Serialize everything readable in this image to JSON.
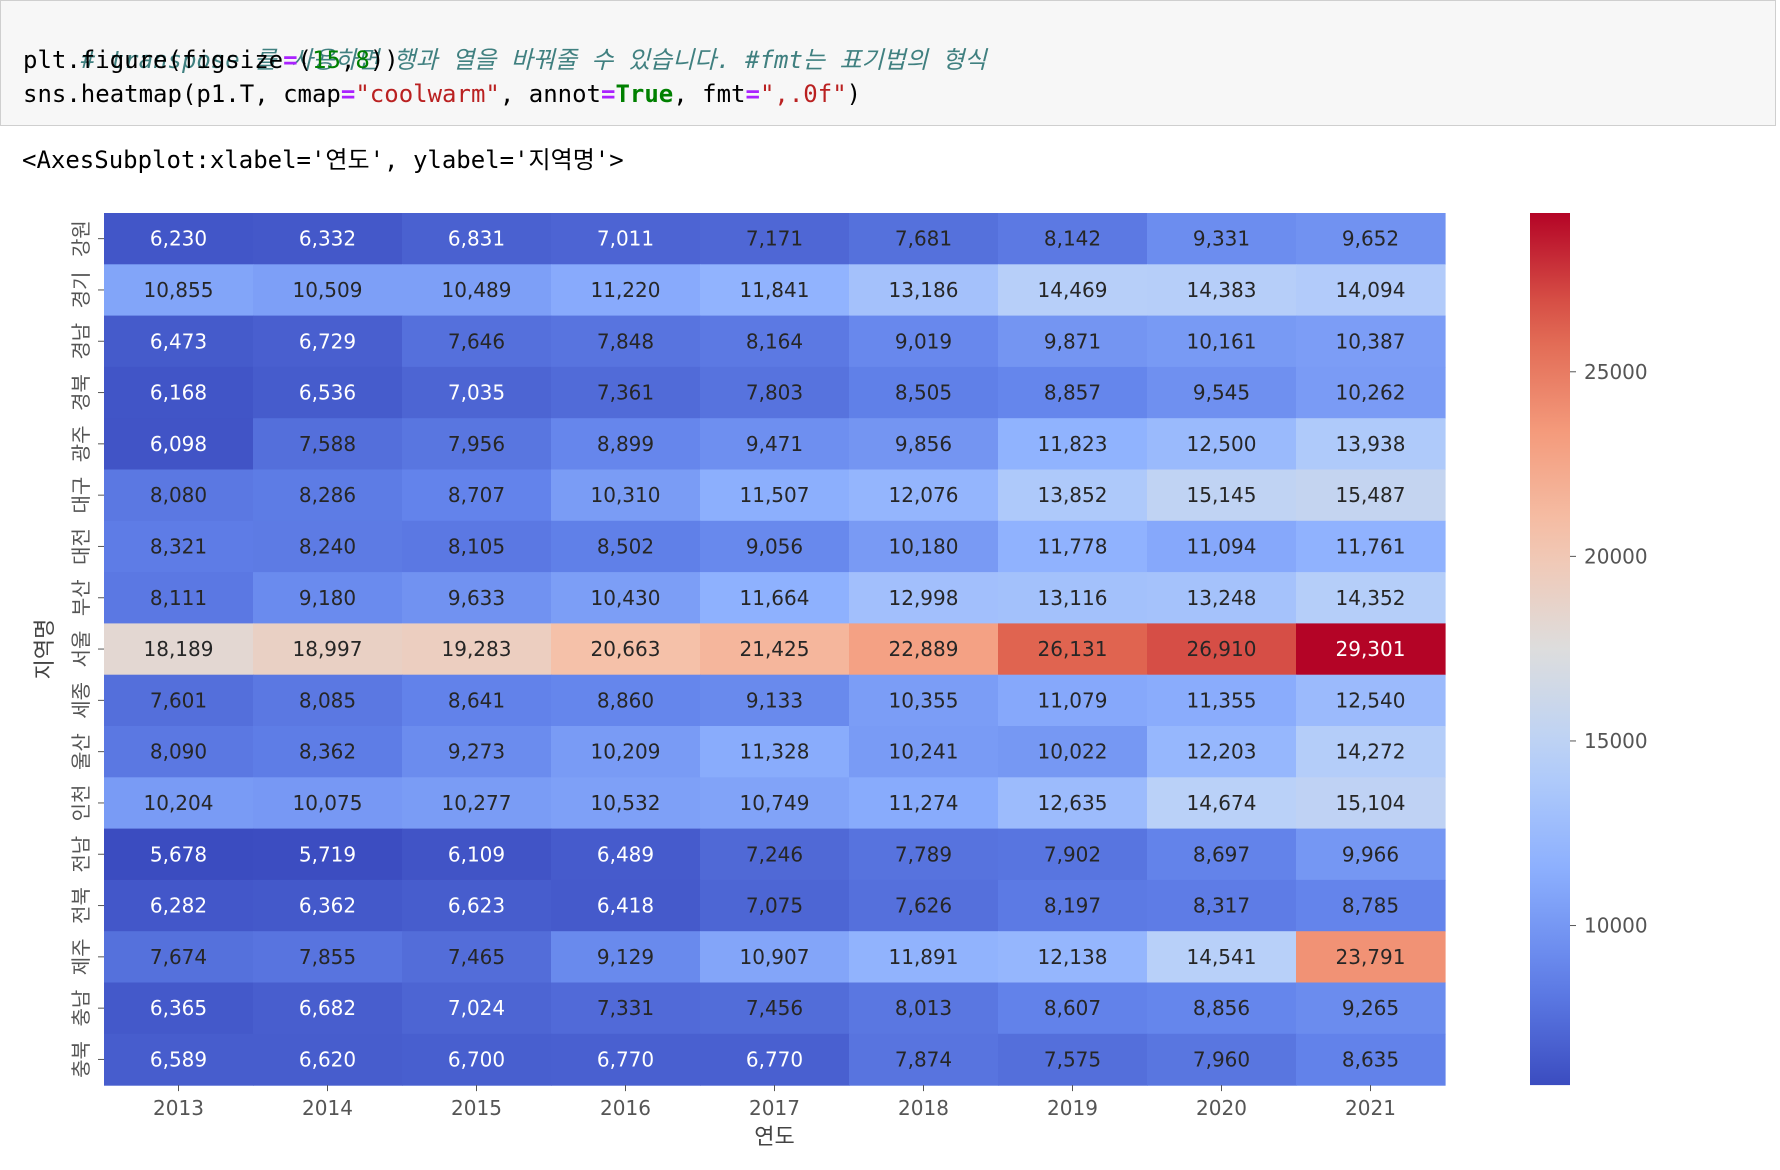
{
  "code_cell": {
    "comment": "# transpose 를 사용하면 행과 열을 바꿔줄 수 있습니다. #fmt는 표기법의 형식",
    "line2": {
      "a": "plt.figure(figsize",
      "op": "=",
      "b": "(",
      "n1": "15",
      "c": ",",
      "n2": "8",
      "d": "))"
    },
    "line3": {
      "a": "sns.heatmap(p1.T, cmap",
      "op1": "=",
      "s1": "\"coolwarm\"",
      "b": ", annot",
      "op2": "=",
      "kw": "True",
      "c": ", fmt",
      "op3": "=",
      "s2": "\",.0f\"",
      "d": ")"
    }
  },
  "output_text": "<AxesSubplot:xlabel='연도', ylabel='지역명'>",
  "chart_data": {
    "type": "heatmap",
    "cmap": "coolwarm",
    "xlabel": "연도",
    "ylabel": "지역명",
    "x_categories": [
      "2013",
      "2014",
      "2015",
      "2016",
      "2017",
      "2018",
      "2019",
      "2020",
      "2021"
    ],
    "y_categories": [
      "강원",
      "경기",
      "경남",
      "경북",
      "광주",
      "대구",
      "대전",
      "부산",
      "서울",
      "세종",
      "울산",
      "인천",
      "전남",
      "전북",
      "제주",
      "충남",
      "충북"
    ],
    "values": [
      [
        6230,
        6332,
        6831,
        7011,
        7171,
        7681,
        8142,
        9331,
        9652
      ],
      [
        10855,
        10509,
        10489,
        11220,
        11841,
        13186,
        14469,
        14383,
        14094
      ],
      [
        6473,
        6729,
        7646,
        7848,
        8164,
        9019,
        9871,
        10161,
        10387
      ],
      [
        6168,
        6536,
        7035,
        7361,
        7803,
        8505,
        8857,
        9545,
        10262
      ],
      [
        6098,
        7588,
        7956,
        8899,
        9471,
        9856,
        11823,
        12500,
        13938
      ],
      [
        8080,
        8286,
        8707,
        10310,
        11507,
        12076,
        13852,
        15145,
        15487
      ],
      [
        8321,
        8240,
        8105,
        8502,
        9056,
        10180,
        11778,
        11094,
        11761
      ],
      [
        8111,
        9180,
        9633,
        10430,
        11664,
        12998,
        13116,
        13248,
        14352
      ],
      [
        18189,
        18997,
        19283,
        20663,
        21425,
        22889,
        26131,
        26910,
        29301
      ],
      [
        7601,
        8085,
        8641,
        8860,
        9133,
        10355,
        11079,
        11355,
        12540
      ],
      [
        8090,
        8362,
        9273,
        10209,
        11328,
        10241,
        10022,
        12203,
        14272
      ],
      [
        10204,
        10075,
        10277,
        10532,
        10749,
        11274,
        12635,
        14674,
        15104
      ],
      [
        5678,
        5719,
        6109,
        6489,
        7246,
        7789,
        7902,
        8697,
        9966
      ],
      [
        6282,
        6362,
        6623,
        6418,
        7075,
        7626,
        8197,
        8317,
        8785
      ],
      [
        7674,
        7855,
        7465,
        9129,
        10907,
        11891,
        12138,
        14541,
        23791
      ],
      [
        6365,
        6682,
        7024,
        7331,
        7456,
        8013,
        8607,
        8856,
        9265
      ],
      [
        6589,
        6620,
        6700,
        6770,
        6770,
        7874,
        7575,
        7960,
        8635
      ]
    ],
    "vmin": 5678,
    "vmax": 29301,
    "colorbar_ticks": [
      10000,
      15000,
      20000,
      25000
    ],
    "value_format": ",.0f"
  }
}
